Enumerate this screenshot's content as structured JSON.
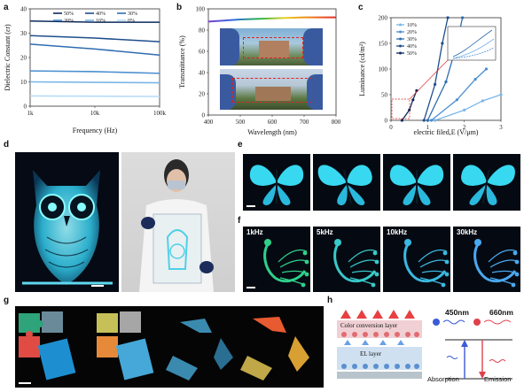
{
  "panel_labels": {
    "a": "a",
    "b": "b",
    "c": "c",
    "d": "d",
    "e": "e",
    "f": "f",
    "g": "g",
    "h": "h"
  },
  "chart_data": [
    {
      "id": "a",
      "type": "line",
      "xlabel": "Frequency (Hz)",
      "ylabel": "Dielectric Constant (εr)",
      "xscale": "log",
      "xlim": [
        1000,
        100000
      ],
      "ylim": [
        0,
        40
      ],
      "xticks": [
        "1k",
        "10k",
        "100k"
      ],
      "yticks": [
        "0",
        "10",
        "20",
        "30",
        "40"
      ],
      "legend": [
        "50%",
        "40%",
        "30%",
        "20%",
        "10%",
        "0%"
      ],
      "legend_position": "top",
      "series": [
        {
          "name": "50%",
          "color": "#0d2a5c",
          "x": [
            1000,
            10000,
            100000
          ],
          "y": [
            35,
            34.5,
            34.5
          ]
        },
        {
          "name": "40%",
          "color": "#1f4e8c",
          "x": [
            1000,
            10000,
            100000
          ],
          "y": [
            29,
            28,
            26.5
          ]
        },
        {
          "name": "30%",
          "color": "#2f6db0",
          "x": [
            1000,
            10000,
            100000
          ],
          "y": [
            25.5,
            23.5,
            21
          ]
        },
        {
          "name": "20%",
          "color": "#4a8fd0",
          "x": [
            1000,
            10000,
            100000
          ],
          "y": [
            14.5,
            14.2,
            13.5
          ]
        },
        {
          "name": "10%",
          "color": "#7ab6e8",
          "x": [
            1000,
            10000,
            100000
          ],
          "y": [
            10,
            9.8,
            9.6
          ]
        },
        {
          "name": "0%",
          "color": "#b6dcf8",
          "x": [
            1000,
            10000,
            100000
          ],
          "y": [
            4.2,
            4.1,
            4.0
          ]
        }
      ]
    },
    {
      "id": "b",
      "type": "line",
      "xlabel": "Wavelength (nm)",
      "ylabel": "Transmittance (%)",
      "xlim": [
        400,
        800
      ],
      "ylim": [
        0,
        100
      ],
      "xticks": [
        "400",
        "500",
        "600",
        "700",
        "800"
      ],
      "yticks": [
        "0",
        "20",
        "40",
        "60",
        "80",
        "100"
      ],
      "series": [
        {
          "name": "",
          "color": "rainbow",
          "x": [
            400,
            500,
            600,
            700,
            800
          ],
          "y": [
            88,
            90,
            91,
            92,
            92
          ]
        }
      ]
    },
    {
      "id": "c",
      "type": "line",
      "xlabel": "electric filed,E (V/μm)",
      "ylabel": "Luminance (cd/m²)",
      "xlim": [
        0,
        3
      ],
      "ylim": [
        0,
        200
      ],
      "xticks": [
        "0",
        "1",
        "2",
        "3"
      ],
      "yticks": [
        "0",
        "50",
        "100",
        "150",
        "200"
      ],
      "legend": [
        "10%",
        "20%",
        "30%",
        "40%",
        "50%"
      ],
      "legend_position": "top-left",
      "series": [
        {
          "name": "10%",
          "color": "#7ab6e8",
          "x": [
            1.2,
            2.0,
            2.5,
            3.0
          ],
          "y": [
            0,
            20,
            38,
            50
          ]
        },
        {
          "name": "20%",
          "color": "#4a8fd0",
          "x": [
            1.1,
            1.8,
            2.3,
            2.6
          ],
          "y": [
            0,
            40,
            80,
            100
          ]
        },
        {
          "name": "30%",
          "color": "#2f6db0",
          "x": [
            1.0,
            1.5,
            1.8,
            1.95
          ],
          "y": [
            0,
            75,
            150,
            200
          ]
        },
        {
          "name": "40%",
          "color": "#1f4e8c",
          "x": [
            0.9,
            1.2,
            1.4,
            1.55
          ],
          "y": [
            0,
            70,
            150,
            200
          ]
        },
        {
          "name": "50%",
          "color": "#0d2a5c",
          "x": [
            0.3,
            0.5,
            0.6,
            0.7
          ],
          "y": [
            0,
            20,
            40,
            58
          ]
        }
      ]
    }
  ],
  "panel_f": {
    "labels": [
      "1kHz",
      "5kHz",
      "10kHz",
      "30kHz"
    ]
  },
  "panel_h": {
    "layer_top": "Color conversion layer",
    "layer_bottom": "EL layer",
    "wl_blue": "450nm",
    "wl_red": "660nm",
    "absorption": "Absorption",
    "emission": "Emission",
    "colors": {
      "blue": "#3b5bd6",
      "red": "#e0404a"
    }
  }
}
